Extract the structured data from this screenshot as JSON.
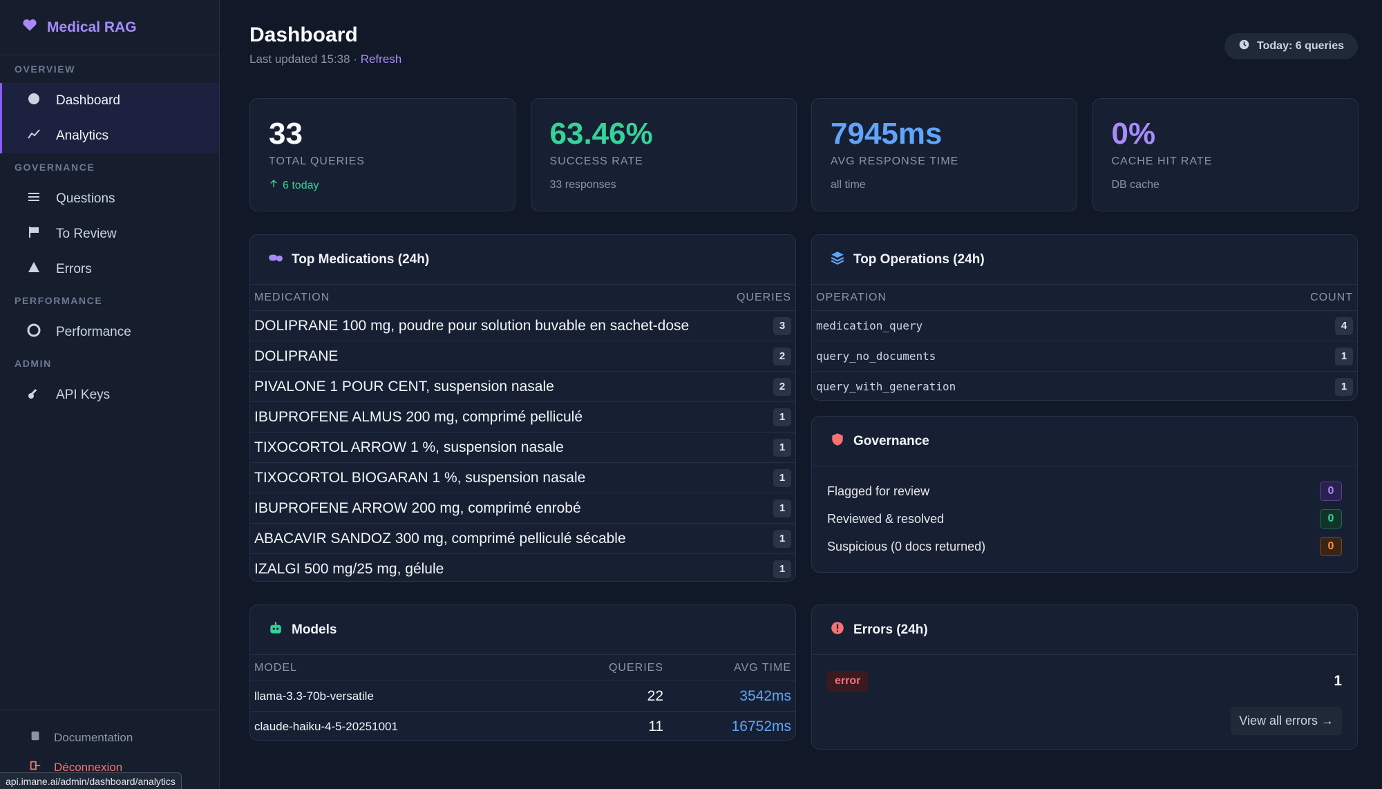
{
  "sidebar": {
    "brand": "Medical RAG",
    "sections": [
      {
        "title": "OVERVIEW",
        "items": [
          {
            "label": "Dashboard",
            "active": true
          },
          {
            "label": "Analytics",
            "active": true
          }
        ]
      },
      {
        "title": "GOVERNANCE",
        "items": [
          {
            "label": "Questions"
          },
          {
            "label": "To Review"
          },
          {
            "label": "Errors"
          }
        ]
      },
      {
        "title": "PERFORMANCE",
        "items": [
          {
            "label": "Performance"
          }
        ]
      },
      {
        "title": "ADMIN",
        "items": [
          {
            "label": "API Keys"
          }
        ]
      }
    ],
    "footer": [
      "Documentation",
      "Déconnexion"
    ]
  },
  "header": {
    "title": "Dashboard",
    "last_updated": "Last updated 15:38 ·",
    "refresh": "Refresh",
    "badge": "Today: 6 queries"
  },
  "stats": [
    {
      "value": "33",
      "label": "TOTAL QUERIES",
      "sub": "6 today",
      "color": "#f8fafc",
      "sub_color": "#34d399"
    },
    {
      "value": "63.46%",
      "label": "SUCCESS RATE",
      "sub": "33 responses",
      "color": "#34d399",
      "sub_color": "#8b95a7"
    },
    {
      "value": "7945ms",
      "label": "AVG RESPONSE TIME",
      "sub": "all time",
      "color": "#60a5fa",
      "sub_color": "#8b95a7"
    },
    {
      "value": "0%",
      "label": "CACHE HIT RATE",
      "sub": "DB cache",
      "color": "#a78bfa",
      "sub_color": "#8b95a7"
    }
  ],
  "medications": {
    "title": "Top Medications (24h)",
    "columns": [
      "MEDICATION",
      "QUERIES"
    ],
    "rows": [
      [
        "DOLIPRANE 100 mg, poudre pour solution buvable en sachet-dose",
        3
      ],
      [
        "DOLIPRANE",
        2
      ],
      [
        "PIVALONE 1 POUR CENT, suspension nasale",
        2
      ],
      [
        "IBUPROFENE ALMUS 200 mg, comprimé pelliculé",
        1
      ],
      [
        "TIXOCORTOL ARROW 1 %, suspension nasale",
        1
      ],
      [
        "TIXOCORTOL BIOGARAN 1 %, suspension nasale",
        1
      ],
      [
        "IBUPROFENE ARROW 200 mg, comprimé enrobé",
        1
      ],
      [
        "ABACAVIR SANDOZ 300 mg, comprimé pelliculé sécable",
        1
      ],
      [
        "IZALGI 500 mg/25 mg, gélule",
        1
      ]
    ]
  },
  "operations": {
    "title": "Top Operations (24h)",
    "columns": [
      "OPERATION",
      "COUNT"
    ],
    "rows": [
      [
        "medication_query",
        4
      ],
      [
        "query_no_documents",
        1
      ],
      [
        "query_with_generation",
        1
      ]
    ]
  },
  "governance": {
    "title": "Governance",
    "rows": [
      {
        "label": "Flagged for review",
        "value": 0,
        "color": "#a78bfa",
        "bg": "#2a2150"
      },
      {
        "label": "Reviewed & resolved",
        "value": 0,
        "color": "#34d399",
        "bg": "#12332a"
      },
      {
        "label": "Suspicious (0 docs returned)",
        "value": 0,
        "color": "#fb923c",
        "bg": "#3a2416"
      }
    ]
  },
  "models": {
    "title": "Models",
    "columns": [
      "MODEL",
      "QUERIES",
      "AVG TIME"
    ],
    "rows": [
      [
        "llama-3.3-70b-versatile",
        22,
        "3542ms"
      ],
      [
        "claude-haiku-4-5-20251001",
        11,
        "16752ms"
      ]
    ]
  },
  "errors": {
    "title": "Errors (24h)",
    "rows": [
      {
        "label": "error",
        "count": 1
      }
    ],
    "button": "View all errors →"
  },
  "status_url": "api.imane.ai/admin/dashboard/analytics"
}
